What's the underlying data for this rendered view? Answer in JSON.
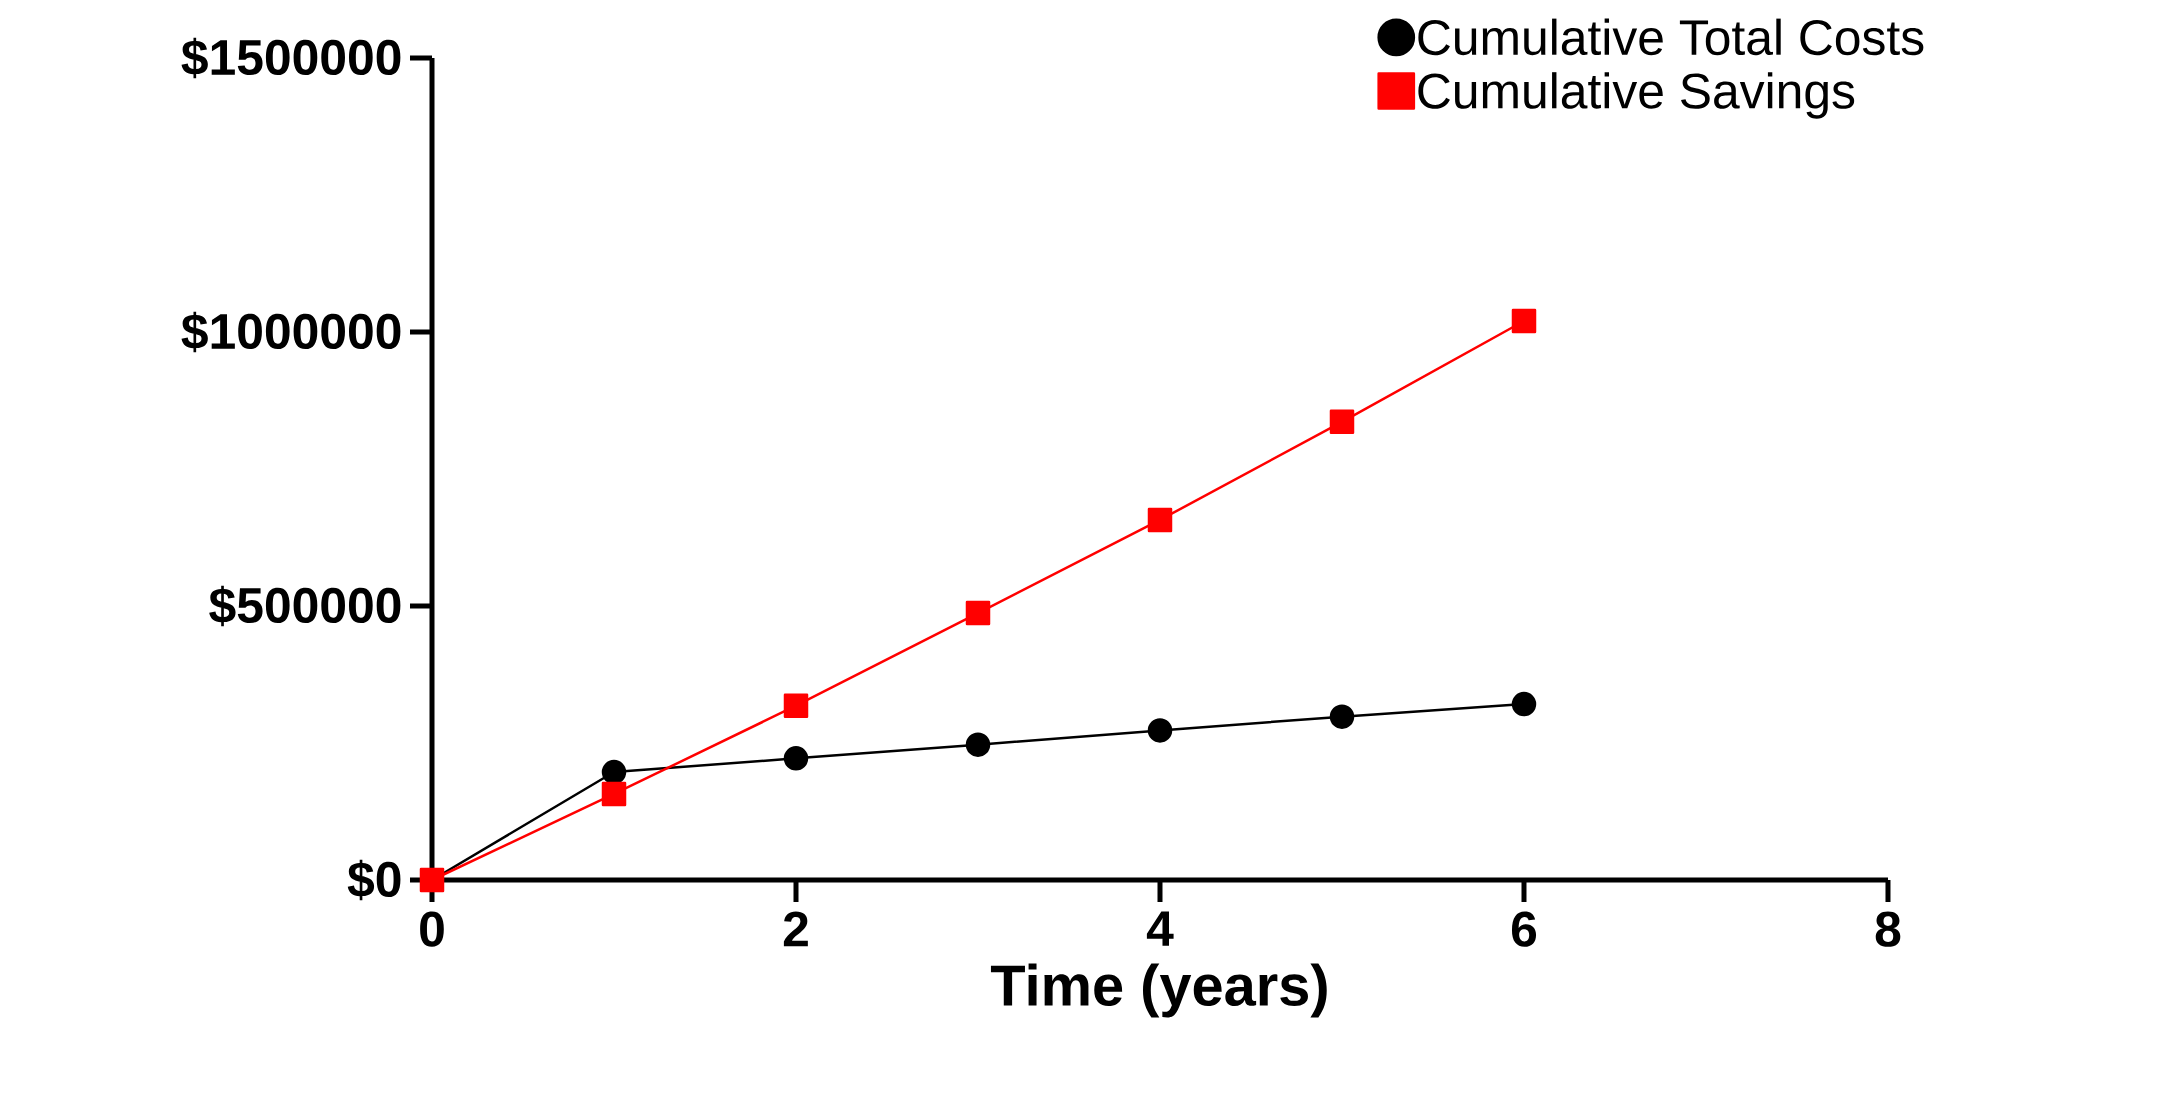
{
  "chart_data": {
    "type": "line",
    "xlabel": "Time (years)",
    "x": [
      0,
      1,
      2,
      3,
      4,
      5,
      6
    ],
    "series": [
      {
        "name": "Cumulative Total Costs",
        "color": "#000000",
        "marker": "circle",
        "values": [
          0,
          197000,
          222000,
          247000,
          273000,
          298000,
          321000
        ]
      },
      {
        "name": "Cumulative Savings",
        "color": "#ff0000",
        "marker": "square",
        "values": [
          0,
          157000,
          318000,
          487000,
          657000,
          836000,
          1020000
        ]
      }
    ],
    "xlim": [
      0,
      8
    ],
    "xticks": [
      0,
      2,
      4,
      6,
      8
    ],
    "ylim": [
      0,
      1500000
    ],
    "yticks": [
      {
        "value": 0,
        "label": "$0"
      },
      {
        "value": 500000,
        "label": "$500000"
      },
      {
        "value": 1000000,
        "label": "$1000000"
      },
      {
        "value": 1500000,
        "label": "$1500000"
      }
    ],
    "legend": "top right",
    "grid": false
  }
}
